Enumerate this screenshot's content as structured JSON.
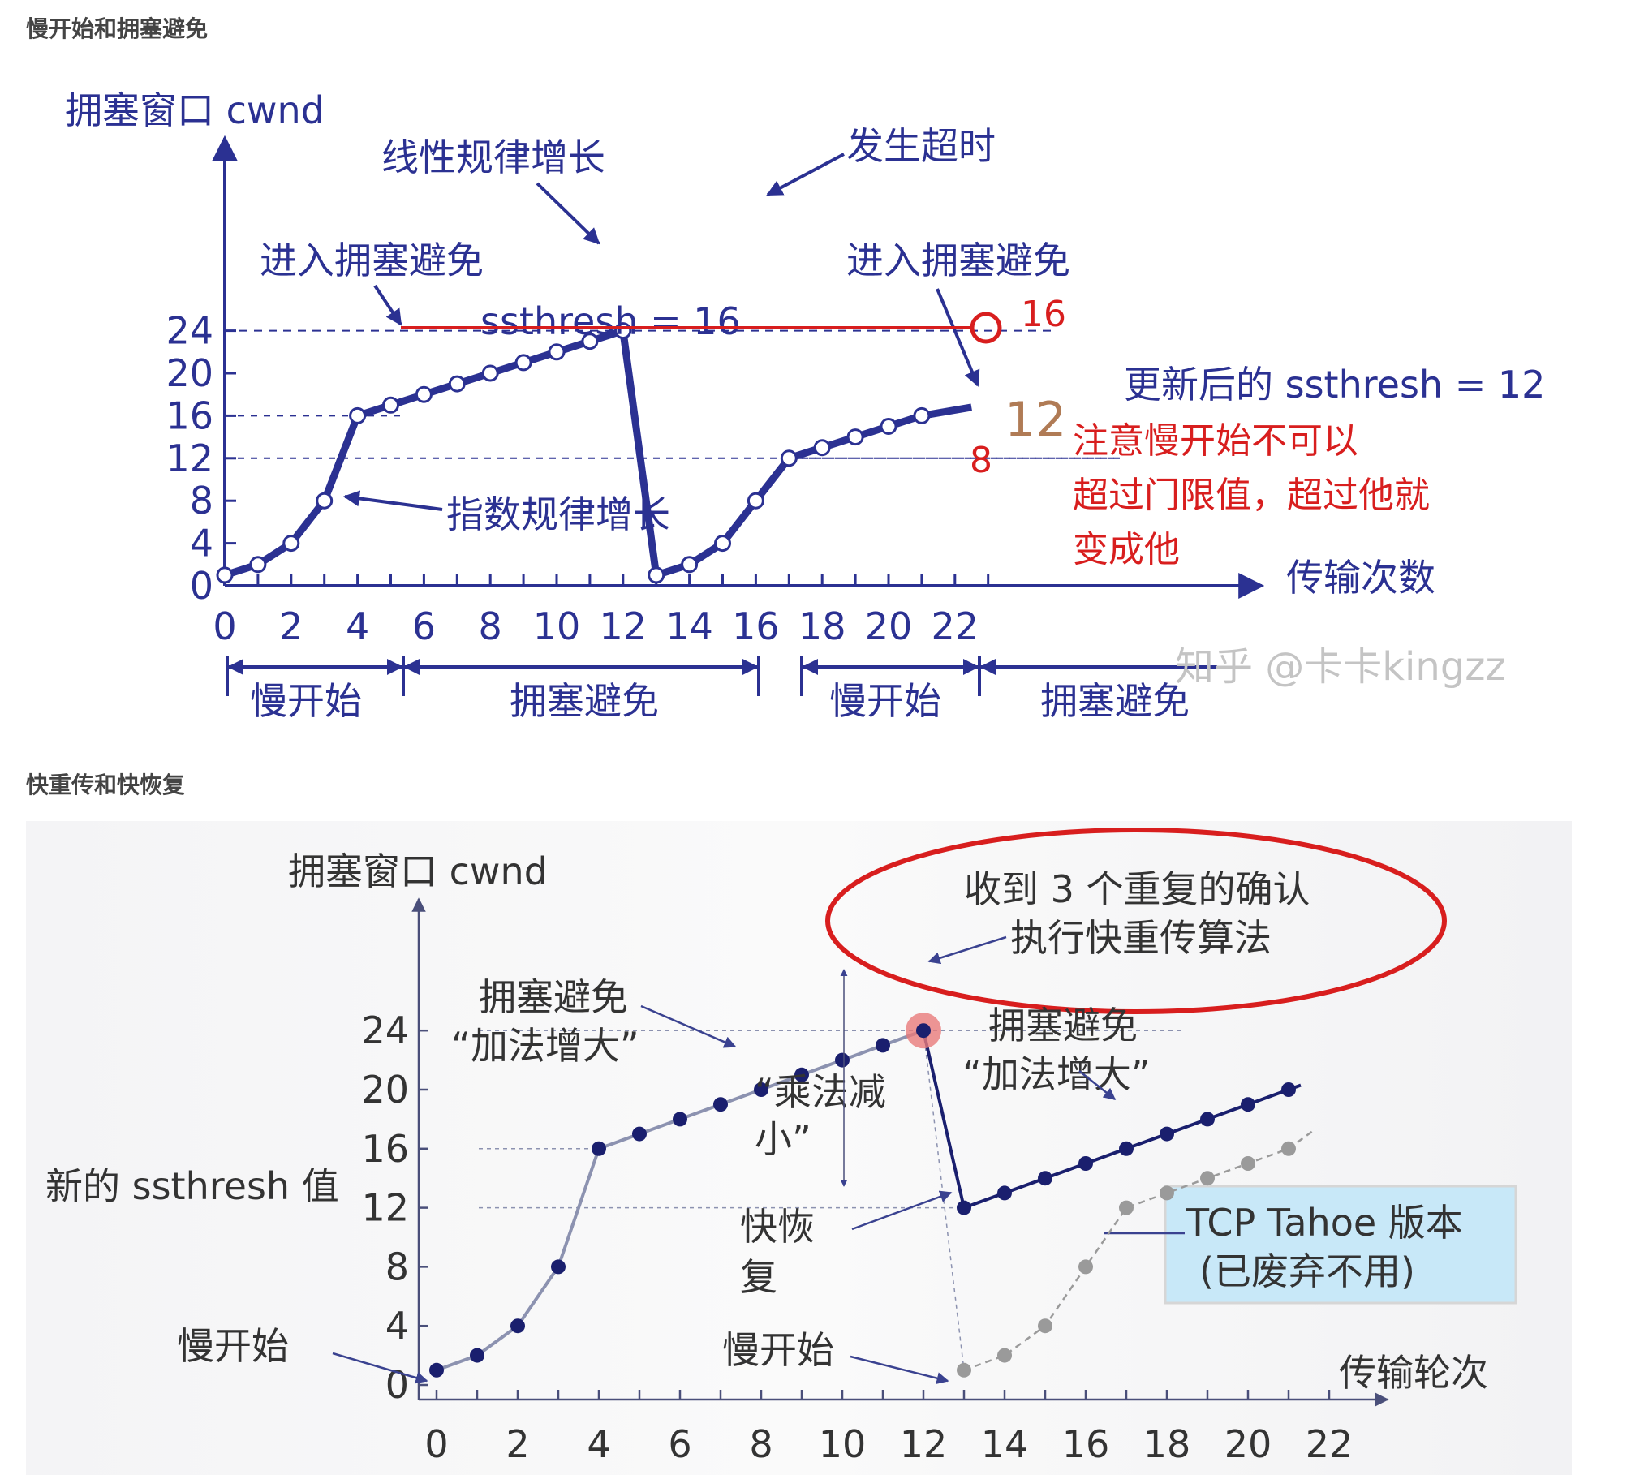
{
  "headings": {
    "slow_start": "慢开始和拥塞避免",
    "fast": "快重传和快恢复"
  },
  "chart_data": [
    {
      "type": "line",
      "ylabel": "拥塞窗口 cwnd",
      "xlabel": "传输次数",
      "x_ticks": [
        "0",
        "2",
        "4",
        "6",
        "8",
        "10",
        "12",
        "14",
        "16",
        "18",
        "20",
        "22"
      ],
      "y_ticks": [
        "0",
        "4",
        "8",
        "12",
        "16",
        "20",
        "24"
      ],
      "xlim": [
        0,
        22
      ],
      "ylim": [
        0,
        24
      ],
      "series": [
        {
          "x": [
            0,
            1,
            2,
            3,
            4,
            5,
            6,
            7,
            8,
            9,
            10,
            11,
            12
          ],
          "y": [
            1,
            2,
            4,
            8,
            16,
            17,
            18,
            19,
            20,
            21,
            22,
            23,
            24
          ]
        },
        {
          "x": [
            13,
            14,
            15,
            16,
            17,
            18,
            19,
            20,
            21
          ],
          "y": [
            1,
            2,
            4,
            8,
            12,
            13,
            14,
            15,
            16
          ]
        }
      ],
      "annotations": {
        "linear": "线性规律增长",
        "timeout": "发生超时",
        "enter_ca_1": "进入拥塞避免",
        "enter_ca_2": "进入拥塞避免",
        "ssthresh": "ssthresh = 16",
        "new_ssthresh": "更新后的 ssthresh = 12",
        "exp": "指数规律增长",
        "red_16": "16",
        "red_8": "8",
        "brown_12": "12",
        "note_line1": "注意慢开始不可以",
        "note_line2": "超过门限值，超过他就",
        "note_line3": "变成他"
      },
      "phases": [
        "慢开始",
        "拥塞避免",
        "慢开始",
        "拥塞避免"
      ],
      "watermark": "知乎 @卡卡kingzz"
    },
    {
      "type": "line",
      "ylabel": "拥塞窗口 cwnd",
      "xlabel": "传输轮次",
      "x_ticks": [
        "0",
        "2",
        "4",
        "6",
        "8",
        "10",
        "12",
        "14",
        "16",
        "18",
        "20",
        "22"
      ],
      "y_ticks": [
        "0",
        "4",
        "8",
        "12",
        "16",
        "20",
        "24"
      ],
      "xlim": [
        0,
        22
      ],
      "ylim": [
        0,
        24
      ],
      "series": [
        {
          "name": "",
          "x": [
            0,
            1,
            2,
            3,
            4,
            5,
            6,
            7,
            8,
            9,
            10,
            11,
            12
          ],
          "y": [
            1,
            2,
            4,
            8,
            16,
            17,
            18,
            19,
            20,
            21,
            22,
            23,
            24
          ]
        },
        {
          "name": "",
          "x": [
            13,
            14,
            15,
            16,
            17,
            18,
            19,
            20,
            21
          ],
          "y": [
            12,
            13,
            14,
            15,
            16,
            17,
            18,
            19,
            20
          ]
        },
        {
          "name": "TCP Tahoe 版本",
          "x": [
            13,
            14,
            15,
            16,
            17,
            18,
            19,
            20,
            21
          ],
          "y": [
            1,
            2,
            4,
            8,
            12,
            13,
            14,
            15,
            16
          ]
        }
      ],
      "annotations": {
        "three_dup_1": "收到 3 个重复的确认",
        "three_dup_2": "执行快重传算法",
        "ca_left_1": "拥塞避免",
        "ca_left_2": "“加法增大”",
        "ca_right_1": "拥塞避免",
        "ca_right_2": "“加法增大”",
        "mult_1": "“乘法减",
        "mult_2": "小”",
        "new_ssthresh": "新的 ssthresh 值",
        "fast_recovery_1": "快恢",
        "fast_recovery_2": "复",
        "slow_start_left": "慢开始",
        "slow_start_right": "慢开始",
        "tahoe_1": "TCP Tahoe 版本",
        "tahoe_2": "(已废弃不用)"
      }
    }
  ],
  "colors": {
    "navy": "#2b3192",
    "red": "#d81e1e",
    "brown": "#b07b55",
    "grey_line": "#8c92b0",
    "tahoe_box": "#c8e8f8"
  }
}
